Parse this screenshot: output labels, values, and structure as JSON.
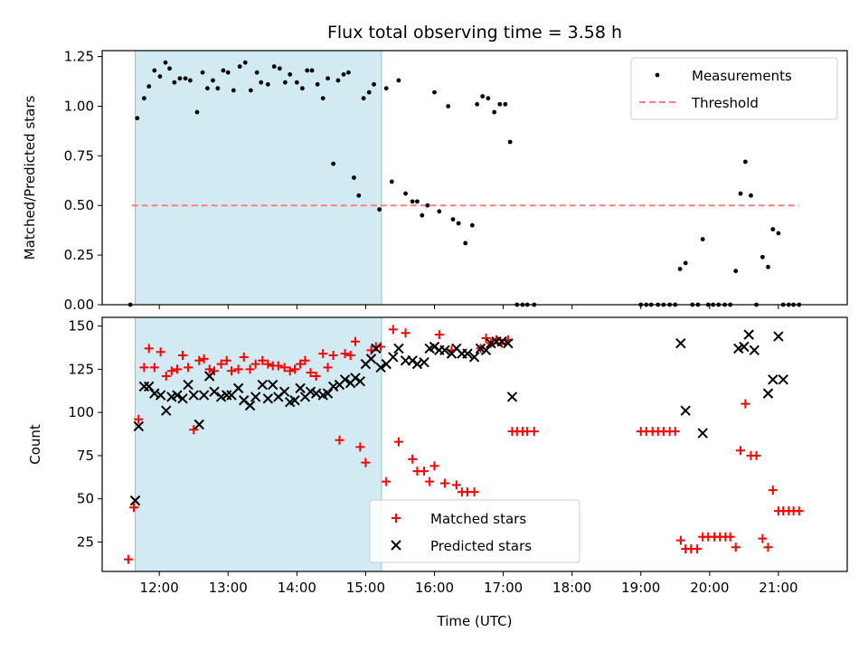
{
  "chart_data": [
    {
      "type": "scatter",
      "title": "Flux total observing time = 3.58 h",
      "xlabel": "",
      "ylabel": "Matched/Predicted stars",
      "ylim": [
        0,
        1.28
      ],
      "yticks": [
        0.0,
        0.25,
        0.5,
        0.75,
        1.0,
        1.25
      ],
      "ytick_labels": [
        "0.00",
        "0.25",
        "0.50",
        "0.75",
        "1.00",
        "1.25"
      ],
      "xlim": [
        11.17,
        22.0
      ],
      "xticks": [
        12,
        13,
        14,
        15,
        16,
        17,
        18,
        19,
        20,
        21
      ],
      "grid": false,
      "legend": "top-right",
      "shaded_region": {
        "x_start": 11.65,
        "x_end": 15.23,
        "color": "#add8e6"
      },
      "threshold": {
        "name": "Threshold",
        "y": 0.5,
        "x_start": 11.6,
        "x_end": 21.3,
        "color": "#ff7f7f"
      },
      "series": [
        {
          "name": "Measurements",
          "color": "#000000",
          "x": [
            11.58,
            11.68,
            11.78,
            11.85,
            11.93,
            12.01,
            12.09,
            12.15,
            12.22,
            12.3,
            12.38,
            12.45,
            12.55,
            12.63,
            12.7,
            12.78,
            12.85,
            12.93,
            13.0,
            13.08,
            13.17,
            13.25,
            13.33,
            13.42,
            13.48,
            13.58,
            13.67,
            13.75,
            13.83,
            13.9,
            14.0,
            14.08,
            14.15,
            14.22,
            14.3,
            14.38,
            14.45,
            14.53,
            14.6,
            14.68,
            14.75,
            14.83,
            14.9,
            14.97,
            15.05,
            15.12,
            15.2,
            15.3,
            15.38,
            15.48,
            15.58,
            15.68,
            15.75,
            15.82,
            15.9,
            16.0,
            16.07,
            16.2,
            16.27,
            16.35,
            16.45,
            16.55,
            16.62,
            16.7,
            16.78,
            16.87,
            16.95,
            17.03,
            17.1,
            17.2,
            17.28,
            17.35,
            17.45,
            19.0,
            19.08,
            19.15,
            19.25,
            19.33,
            19.42,
            19.5,
            19.57,
            19.65,
            19.75,
            19.83,
            19.9,
            19.98,
            20.05,
            20.13,
            20.22,
            20.3,
            20.38,
            20.45,
            20.52,
            20.6,
            20.68,
            20.77,
            20.85,
            20.92,
            21.0,
            21.07,
            21.15,
            21.22,
            21.3
          ],
          "y": [
            0.0,
            0.94,
            1.04,
            1.1,
            1.18,
            1.15,
            1.22,
            1.19,
            1.12,
            1.14,
            1.14,
            1.13,
            0.97,
            1.17,
            1.09,
            1.13,
            1.09,
            1.18,
            1.17,
            1.08,
            1.2,
            1.22,
            1.08,
            1.17,
            1.12,
            1.11,
            1.2,
            1.19,
            1.12,
            1.16,
            1.12,
            1.09,
            1.18,
            1.18,
            1.11,
            1.04,
            1.14,
            0.71,
            1.13,
            1.16,
            1.17,
            0.64,
            0.55,
            1.04,
            1.07,
            1.11,
            0.48,
            1.09,
            0.62,
            1.13,
            0.56,
            0.52,
            0.52,
            0.45,
            0.5,
            1.07,
            0.47,
            1.0,
            0.43,
            0.41,
            0.31,
            0.4,
            1.01,
            1.05,
            1.04,
            0.97,
            1.01,
            1.01,
            0.82,
            0.0,
            0.0,
            0.0,
            0.0,
            0.0,
            0.0,
            0.0,
            0.0,
            0.0,
            0.0,
            0.0,
            0.18,
            0.21,
            0.0,
            0.0,
            0.33,
            0.0,
            0.0,
            0.0,
            0.0,
            0.0,
            0.17,
            0.56,
            0.72,
            0.55,
            0.0,
            0.24,
            0.19,
            0.38,
            0.36,
            0.0,
            0.0,
            0.0,
            0.0
          ]
        }
      ]
    },
    {
      "type": "scatter",
      "title": "",
      "xlabel": "Time (UTC)",
      "ylabel": "Count",
      "ylim": [
        8,
        155
      ],
      "yticks": [
        25,
        50,
        75,
        100,
        125,
        150
      ],
      "ytick_labels": [
        "25",
        "50",
        "75",
        "100",
        "125",
        "150"
      ],
      "xlim": [
        11.17,
        22.0
      ],
      "xticks": [
        12,
        13,
        14,
        15,
        16,
        17,
        18,
        19,
        20,
        21
      ],
      "xtick_labels": [
        "12:00",
        "13:00",
        "14:00",
        "15:00",
        "16:00",
        "17:00",
        "18:00",
        "19:00",
        "20:00",
        "21:00"
      ],
      "grid": false,
      "legend": "bottom-center",
      "shaded_region": {
        "x_start": 11.65,
        "x_end": 15.23,
        "color": "#add8e6"
      },
      "series": [
        {
          "name": "Matched stars",
          "marker": "plus",
          "color": "#ff0000",
          "x": [
            11.55,
            11.63,
            11.7,
            11.78,
            11.85,
            11.93,
            12.02,
            12.1,
            12.18,
            12.26,
            12.34,
            12.42,
            12.5,
            12.58,
            12.65,
            12.73,
            12.8,
            12.9,
            12.98,
            13.05,
            13.15,
            13.23,
            13.32,
            13.4,
            13.5,
            13.58,
            13.65,
            13.73,
            13.82,
            13.9,
            13.97,
            14.05,
            14.12,
            14.2,
            14.28,
            14.38,
            14.45,
            14.53,
            14.62,
            14.7,
            14.78,
            14.85,
            14.92,
            15.0,
            15.08,
            15.15,
            15.22,
            15.3,
            15.4,
            15.48,
            15.58,
            15.68,
            15.75,
            15.85,
            15.93,
            16.0,
            16.07,
            16.15,
            16.25,
            16.32,
            16.4,
            16.48,
            16.58,
            16.67,
            16.75,
            16.82,
            16.9,
            16.98,
            17.07,
            17.13,
            17.2,
            17.28,
            17.35,
            17.45,
            19.0,
            19.08,
            19.17,
            19.25,
            19.33,
            19.42,
            19.5,
            19.58,
            19.65,
            19.73,
            19.82,
            19.9,
            19.98,
            20.07,
            20.15,
            20.23,
            20.3,
            20.38,
            20.45,
            20.52,
            20.6,
            20.68,
            20.77,
            20.85,
            20.92,
            21.0,
            21.07,
            21.15,
            21.22,
            21.3
          ],
          "y": [
            15,
            45,
            96,
            126,
            137,
            126,
            135,
            121,
            124,
            125,
            133,
            126,
            90,
            130,
            131,
            125,
            124,
            128,
            130,
            124,
            125,
            132,
            125,
            128,
            130,
            128,
            127,
            127,
            126,
            124,
            125,
            128,
            130,
            123,
            121,
            134,
            126,
            133,
            84,
            134,
            133,
            141,
            80,
            71,
            136,
            138,
            138,
            60,
            148,
            83,
            146,
            73,
            66,
            66,
            60,
            69,
            145,
            59,
            136,
            58,
            54,
            54,
            54,
            137,
            143,
            140,
            142,
            140,
            142,
            89,
            89,
            89,
            89,
            89,
            89,
            89,
            89,
            89,
            89,
            89,
            89,
            26,
            21,
            21,
            21,
            28,
            28,
            28,
            28,
            28,
            28,
            22,
            78,
            105,
            75,
            75,
            27,
            22,
            55,
            43,
            43,
            43,
            43,
            43
          ]
        },
        {
          "name": "Predicted stars",
          "marker": "x",
          "color": "#000000",
          "x": [
            11.65,
            11.7,
            11.78,
            11.85,
            11.93,
            12.02,
            12.1,
            12.18,
            12.26,
            12.34,
            12.42,
            12.5,
            12.58,
            12.65,
            12.73,
            12.8,
            12.9,
            12.98,
            13.05,
            13.15,
            13.23,
            13.32,
            13.4,
            13.5,
            13.58,
            13.65,
            13.73,
            13.82,
            13.9,
            13.97,
            14.05,
            14.12,
            14.2,
            14.28,
            14.38,
            14.45,
            14.53,
            14.62,
            14.7,
            14.78,
            14.85,
            14.92,
            15.0,
            15.08,
            15.15,
            15.22,
            15.3,
            15.4,
            15.48,
            15.58,
            15.68,
            15.75,
            15.85,
            15.93,
            16.0,
            16.07,
            16.15,
            16.25,
            16.32,
            16.4,
            16.48,
            16.58,
            16.67,
            16.75,
            16.82,
            16.9,
            16.98,
            17.07,
            17.13,
            19.58,
            19.65,
            19.9,
            20.42,
            20.5,
            20.57,
            20.65,
            20.85,
            20.92,
            21.0,
            21.07
          ],
          "y": [
            49,
            92,
            115,
            115,
            111,
            110,
            101,
            109,
            110,
            108,
            116,
            110,
            93,
            110,
            121,
            112,
            109,
            110,
            110,
            114,
            107,
            104,
            109,
            116,
            108,
            116,
            109,
            112,
            106,
            107,
            114,
            109,
            112,
            111,
            110,
            111,
            115,
            116,
            119,
            117,
            120,
            118,
            128,
            131,
            137,
            126,
            128,
            132,
            137,
            130,
            130,
            128,
            129,
            137,
            138,
            136,
            136,
            134,
            137,
            134,
            134,
            132,
            137,
            136,
            140,
            141,
            141,
            140,
            109,
            140,
            101,
            88,
            137,
            138,
            145,
            136,
            111,
            119,
            144,
            119
          ]
        }
      ]
    }
  ]
}
